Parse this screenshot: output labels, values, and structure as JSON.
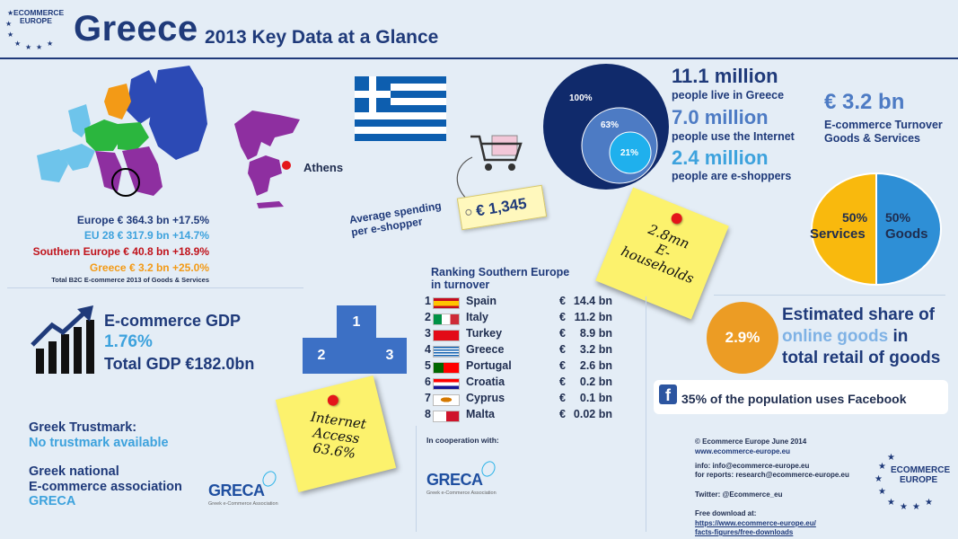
{
  "header": {
    "logo_line1": "ECOMMERCE",
    "logo_line2": "EUROPE",
    "title": "Greece",
    "subtitle": "2013 Key Data at a Glance"
  },
  "map": {
    "city_label": "Athens"
  },
  "turnover_stats": [
    {
      "text": "Europe € 364.3 bn +17.5%",
      "color": "#1f3a7a"
    },
    {
      "text": "EU 28 € 317.9 bn +14.7%",
      "color": "#3da2dd"
    },
    {
      "text": "Southern Europe € 40.8 bn +18.9%",
      "color": "#c0131b"
    },
    {
      "text": "Greece € 3.2 bn +25.0%",
      "color": "#f39a16"
    }
  ],
  "turnover_note": "Total B2C E-commerce 2013 of Goods & Services",
  "spending": {
    "label_line1": "Average spending",
    "label_line2": "per e-shopper",
    "value": "€ 1,345"
  },
  "population": {
    "circle_outer": "100%",
    "circle_mid": "63%",
    "circle_inner": "21%",
    "people_value": "11.1 million",
    "people_label": "people live in Greece",
    "internet_value": "7.0 million",
    "internet_label": "people use the Internet",
    "eshoppers_value": "2.4 million",
    "eshoppers_label": "people are e-shoppers"
  },
  "turnover": {
    "value": "€ 3.2 bn",
    "label_line1": "E-commerce Turnover",
    "label_line2": "Goods & Services"
  },
  "pie": {
    "services_pct": "50%",
    "services_label": "Services",
    "goods_pct": "50%",
    "goods_label": "Goods",
    "services_share": 0.5,
    "goods_share": 0.5,
    "services_color": "#f9b90d",
    "goods_color": "#2e8fd6"
  },
  "households_note": {
    "line1": "2.8mn",
    "line2": "E-",
    "line3": "households"
  },
  "internet_note": {
    "line1": "Internet",
    "line2": "Access",
    "line3": "63.6%"
  },
  "ecommerce_gdp": {
    "label": "E-commerce GDP",
    "value": "1.76%",
    "total": "Total GDP €182.0bn"
  },
  "podium": {
    "first": "1",
    "second": "2",
    "third": "3"
  },
  "ranking": {
    "title_line1": "Ranking Southern Europe",
    "title_line2": "in turnover",
    "rows": [
      {
        "rank": "1",
        "country": "Spain",
        "euro": "€",
        "value": "14.4 bn"
      },
      {
        "rank": "2",
        "country": "Italy",
        "euro": "€",
        "value": "11.2 bn"
      },
      {
        "rank": "3",
        "country": "Turkey",
        "euro": "€",
        "value": "8.9 bn"
      },
      {
        "rank": "4",
        "country": "Greece",
        "euro": "€",
        "value": "3.2 bn"
      },
      {
        "rank": "5",
        "country": "Portugal",
        "euro": "€",
        "value": "2.6 bn"
      },
      {
        "rank": "6",
        "country": "Croatia",
        "euro": "€",
        "value": "0.2 bn"
      },
      {
        "rank": "7",
        "country": "Cyprus",
        "euro": "€",
        "value": "0.1 bn"
      },
      {
        "rank": "8",
        "country": "Malta",
        "euro": "€",
        "value": "0.02 bn"
      }
    ]
  },
  "share": {
    "value": "2.9%",
    "line1": "Estimated share of",
    "line2a": "online goods",
    "line2b": " in",
    "line3": "total retail of goods"
  },
  "facebook": {
    "text": "35% of the population uses Facebook"
  },
  "trustmark": {
    "title": "Greek Trustmark:",
    "value": "No trustmark available"
  },
  "association": {
    "line1": "Greek national",
    "line2": "E-commerce association",
    "name": "GRECA"
  },
  "greca_logo": {
    "name": "GRECA",
    "tagline": "Greek e-Commerce Association"
  },
  "cooperation": {
    "label": "In cooperation with:"
  },
  "contact": {
    "copyright": "© Ecommerce Europe June 2014",
    "website": "www.ecommerce-europe.eu",
    "info": "info: info@ecommerce-europe.eu",
    "reports": "for reports: research@ecommerce-europe.eu",
    "twitter": "Twitter: @Ecommerce_eu",
    "download_label": "Free download at:",
    "download_link1": "https://www.ecommerce-europe.eu/",
    "download_link2": "facts-figures/free-downloads"
  },
  "icons": [
    "stars-logo-icon",
    "cart-icon",
    "growth-chart-icon",
    "facebook-icon",
    "pushpin-icon"
  ]
}
